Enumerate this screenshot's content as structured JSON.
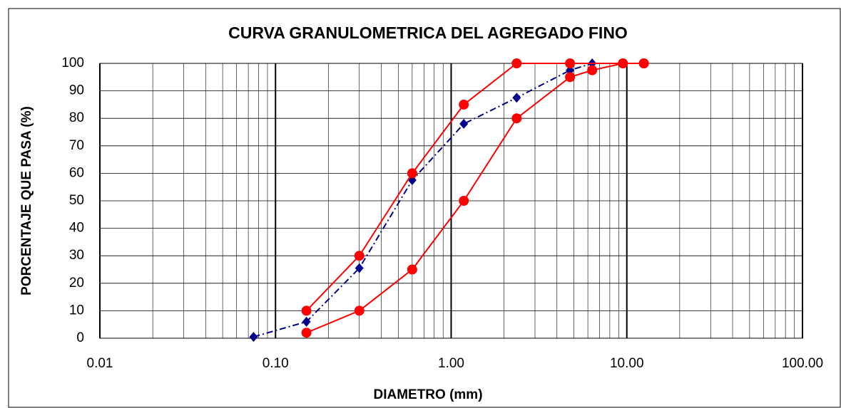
{
  "chart_data": {
    "type": "line",
    "title": "CURVA GRANULOMETRICA DEL AGREGADO FINO",
    "x_label": "DIAMETRO (mm)",
    "y_label": "PORCENTAJE QUE PASA (%)",
    "x_log": true,
    "grid": true,
    "xlim": [
      0.01,
      100
    ],
    "xticks": [
      0.01,
      {
        "value": 0.1,
        "label": "0.10"
      },
      {
        "value": 1,
        "label": "1.00"
      },
      {
        "value": 10,
        "label": "10.00"
      },
      {
        "value": 100,
        "label": "100.00"
      }
    ],
    "ylim": [
      0,
      100
    ],
    "yticks": [
      0,
      10,
      20,
      30,
      40,
      50,
      60,
      70,
      80,
      90,
      100
    ],
    "series": [
      {
        "color": "#00008b",
        "linestyle": "dashdot",
        "marker": "diamond",
        "x": [
          0.075,
          0.15,
          0.3,
          0.6,
          1.18,
          2.36,
          4.75,
          6.35,
          9.5
        ],
        "values": [
          0.5,
          6,
          25.5,
          57.5,
          78,
          87.5,
          97.5,
          100,
          100
        ]
      },
      {
        "color": "#ff0000",
        "linestyle": "solid",
        "marker": "circle",
        "x": [
          0.15,
          0.3,
          0.6,
          1.18,
          2.36,
          4.75,
          9.5,
          12.5
        ],
        "values": [
          10,
          30,
          60,
          85,
          100,
          100,
          100,
          100
        ]
      },
      {
        "color": "#ff0000",
        "linestyle": "solid",
        "marker": "circle",
        "x": [
          0.15,
          0.3,
          0.6,
          1.18,
          2.36,
          4.75,
          6.35,
          9.5,
          12.5
        ],
        "values": [
          2,
          10,
          25,
          50,
          80,
          95,
          97.5,
          100,
          100
        ]
      }
    ]
  }
}
